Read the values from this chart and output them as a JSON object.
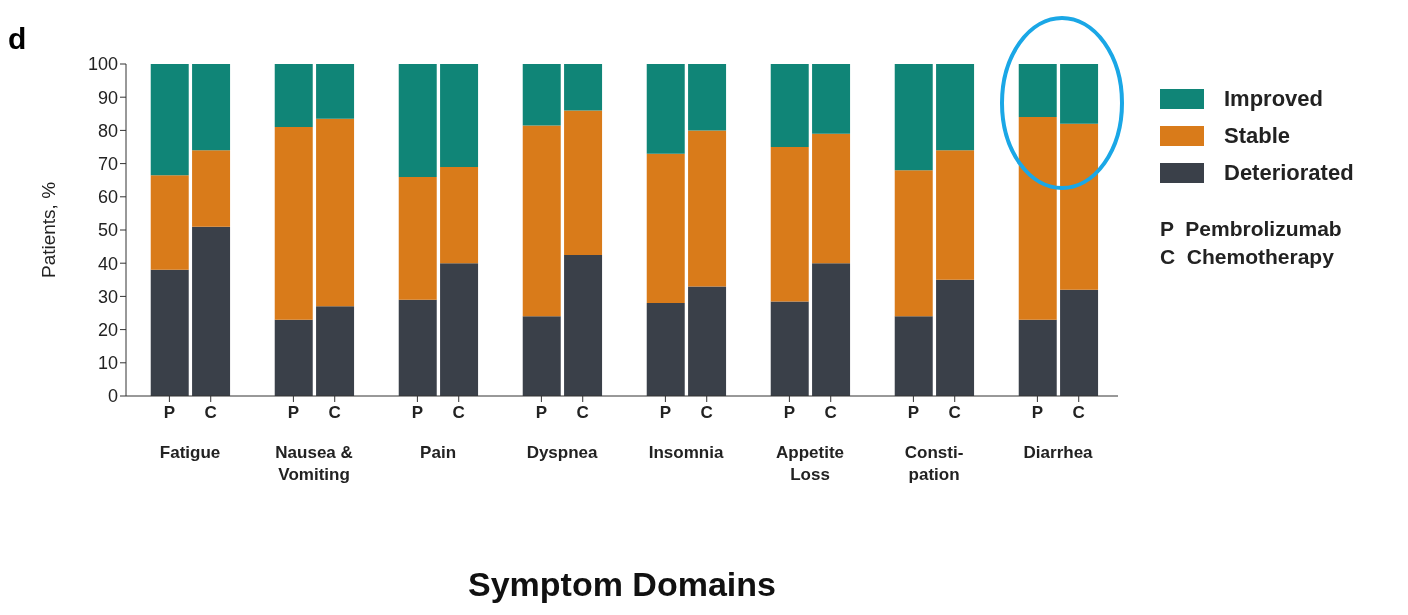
{
  "chart_data": {
    "type": "bar",
    "stacked": true,
    "xlabel": "Symptom Domains",
    "ylabel": "Patients, %",
    "categories": [
      "P",
      "C",
      "P",
      "C",
      "P",
      "C",
      "P",
      "C",
      "P",
      "C",
      "P",
      "C",
      "P",
      "C",
      "P",
      "C"
    ],
    "series": [
      {
        "name": "Deteriorated",
        "color": "#3a4049",
        "values": [
          38,
          51,
          23,
          27,
          29,
          40,
          24,
          42.5,
          28,
          33,
          28.5,
          40,
          24,
          35,
          23,
          32
        ]
      },
      {
        "name": "Stable",
        "color": "#d97b1a",
        "values": [
          28.5,
          23,
          58,
          56.5,
          37,
          29,
          57.5,
          43.5,
          45,
          47,
          46.5,
          39,
          44,
          39,
          61,
          50
        ]
      },
      {
        "name": "Improved",
        "color": "#108577",
        "values": [
          33.5,
          26,
          19,
          16.5,
          34,
          31,
          18.5,
          14,
          27,
          20,
          25,
          21,
          32,
          26,
          16,
          18
        ]
      }
    ],
    "ylim": [
      0,
      100
    ],
    "yticks": [
      0,
      10,
      20,
      30,
      40,
      50,
      60,
      70,
      80,
      90,
      100
    ],
    "legend": "top right",
    "annotations": [
      "d",
      "Fatigue",
      "Nausea &\nVomiting",
      "Pain",
      "Dyspnea",
      "Insomnia",
      "Appetite\nLoss",
      "Consti-\npation",
      "Diarrhea",
      "P  Pembrolizumab",
      "C  Chemotherapy"
    ]
  }
}
